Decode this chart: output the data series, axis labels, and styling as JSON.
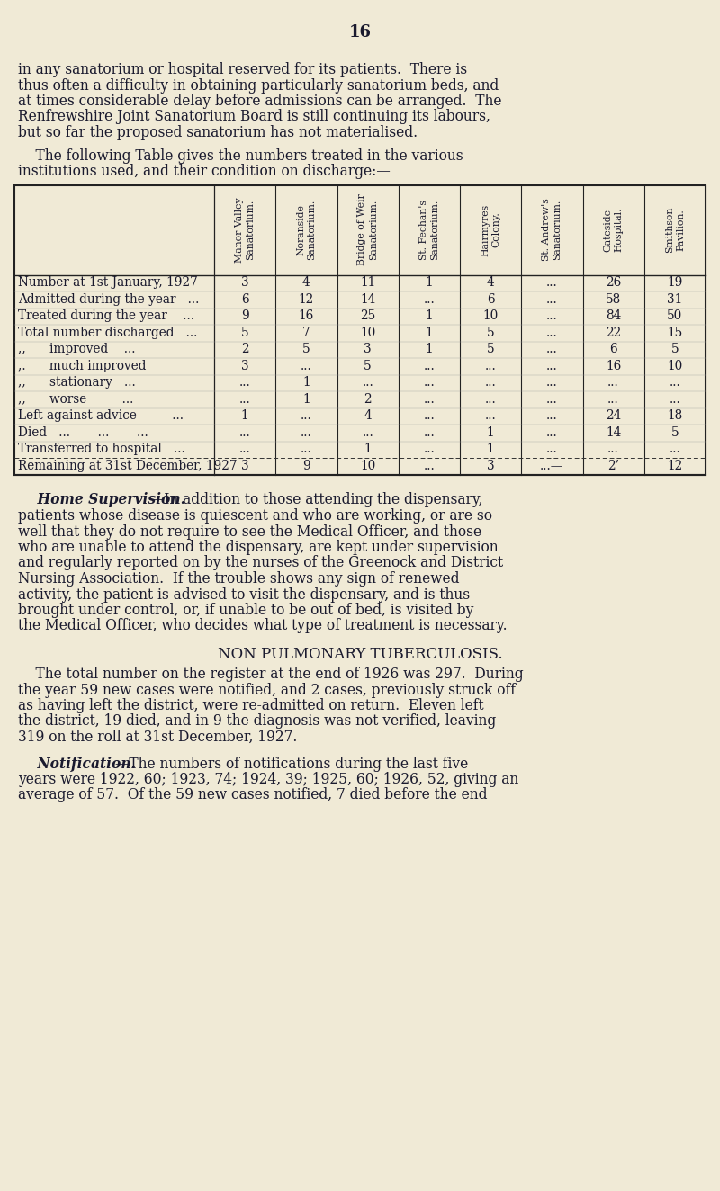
{
  "bg_color": "#f0ead6",
  "text_color": "#1a1a2e",
  "page_number": "16",
  "para1_lines": [
    "in any sanatorium or hospital reserved for its patients.  There is",
    "thus often a difficulty in obtaining particularly sanatorium beds, and",
    "at times considerable delay before admissions can be arranged.  The",
    "Renfrewshire Joint Sanatorium Board is still continuing its labours,",
    "but so far the proposed sanatorium has not materialised."
  ],
  "para2_lines": [
    "    The following Table gives the numbers treated in the various",
    "institutions used, and their condition on discharge:—"
  ],
  "col_headers": [
    "Manor Valley\nSanatorium.",
    "Noranside\nSanatorium.",
    "Bridge of Weir\nSanatorium.",
    "St. Fechan's\nSanatorium.",
    "Hairmyres\nColony.",
    "St. Andrew's\nSanatorium.",
    "Gateside\nHospital.",
    "Smithson\nPavilion."
  ],
  "row_labels": [
    "Number at 1st January, 1927",
    "Admitted during the year   ...",
    "Treated during the year    ...",
    "Total number discharged   ...",
    ",,      improved    ...",
    ",.      much improved",
    ",,      stationary   ...",
    ",,      worse         ...",
    "Left against advice         ...",
    "Died   ...       ...       ...",
    "Transferred to hospital   ...",
    "Remaining at 31st December, 1927"
  ],
  "table_data": [
    [
      "3",
      "4",
      "11",
      "1",
      "4",
      "...",
      "26",
      "19"
    ],
    [
      "6",
      "12",
      "14",
      "...",
      "6",
      "...",
      "58",
      "31"
    ],
    [
      "9",
      "16",
      "25",
      "1",
      "10",
      "...",
      "84",
      "50"
    ],
    [
      "5",
      "7",
      "10",
      "1",
      "5",
      "...",
      "22",
      "15"
    ],
    [
      "2",
      "5",
      "3",
      "1",
      "5",
      "...",
      "6",
      "5"
    ],
    [
      "3",
      "...",
      "5",
      "...",
      "...",
      "...",
      "16",
      "10"
    ],
    [
      "...",
      "1",
      "...",
      "...",
      "...",
      "...",
      "...",
      "..."
    ],
    [
      "...",
      "1",
      "2",
      "...",
      "...",
      "...",
      "...",
      "..."
    ],
    [
      "1",
      "...",
      "4",
      "...",
      "...",
      "...",
      "24",
      "18"
    ],
    [
      "...",
      "...",
      "...",
      "...",
      "1",
      "...",
      "14",
      "5"
    ],
    [
      "...",
      "...",
      "1",
      "...",
      "1",
      "...",
      "...",
      "..."
    ],
    [
      "3",
      "9",
      "10",
      "...",
      "3",
      "...—",
      "2’",
      "12"
    ]
  ],
  "home_sup_lines": [
    "    Home Supervision.—In addition to those attending the dispensary,",
    "patients whose disease is quiescent and who are working, or are so",
    "well that they do not require to see the Medical Officer, and those",
    "who are unable to attend the dispensary, are kept under supervision",
    "and regularly reported on by the nurses of the Greenock and District",
    "Nursing Association.  If the trouble shows any sign of renewed",
    "activity, the patient is advised to visit the dispensary, and is thus",
    "brought under control, or, if unable to be out of bed, is visited by",
    "the Medical Officer, who decides what type of treatment is necessary."
  ],
  "non_pulm_title": "NON PULMONARY TUBERCULOSIS.",
  "non_pulm_lines": [
    "    The total number on the register at the end of 1926 was 297.  During",
    "the year 59 new cases were notified, and 2 cases, previously struck off",
    "as having left the district, were re-admitted on return.  Eleven left",
    "the district, 19 died, and in 9 the diagnosis was not verified, leaving",
    "319 on the roll at 31st December, 1927."
  ],
  "notif_lines": [
    "    Notification.—The numbers of notifications during the last five",
    "years were 1922, 60; 1923, 74; 1924, 39; 1925, 60; 1926, 52, giving an",
    "average of 57.  Of the 59 new cases notified, 7 died before the end"
  ]
}
